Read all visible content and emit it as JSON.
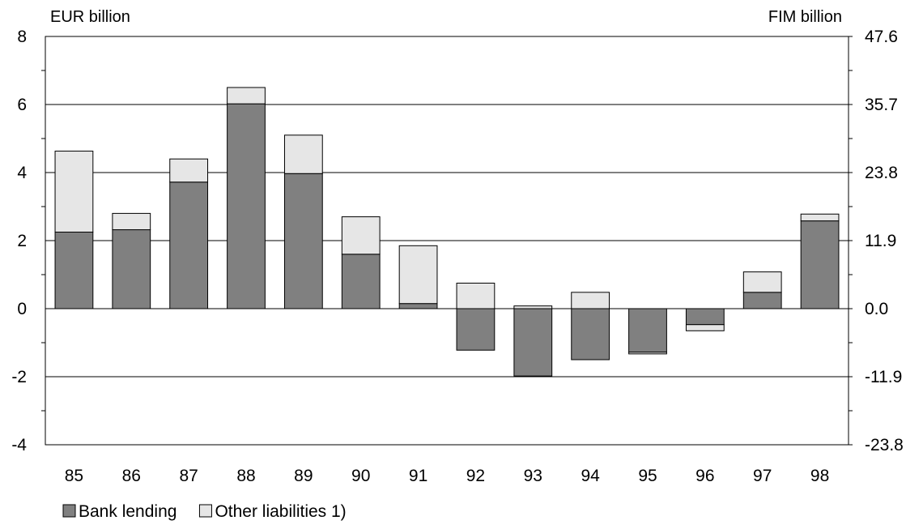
{
  "chart_data": {
    "type": "bar",
    "stacked": true,
    "title": "",
    "y_left_unit": "EUR billion",
    "y_right_unit": "FIM billion",
    "categories": [
      "85",
      "86",
      "87",
      "88",
      "89",
      "90",
      "91",
      "92",
      "93",
      "94",
      "95",
      "96",
      "97",
      "98"
    ],
    "series": [
      {
        "name": "Bank lending",
        "color": "#808080",
        "values": [
          2.25,
          2.32,
          3.72,
          6.02,
          3.97,
          1.6,
          0.15,
          -1.22,
          -1.98,
          -1.5,
          -1.28,
          -0.47,
          0.48,
          2.58
        ]
      },
      {
        "name": "Other liabilities 1)",
        "color": "#e6e6e6",
        "values": [
          2.38,
          0.48,
          0.68,
          0.48,
          1.13,
          1.1,
          1.7,
          0.75,
          0.08,
          0.48,
          -0.05,
          -0.18,
          0.6,
          0.2
        ]
      }
    ],
    "ylim": [
      -4,
      8
    ],
    "y_ticks": [
      -4,
      -2,
      0,
      2,
      4,
      6,
      8
    ],
    "y_right_ticks": [
      "47.6",
      "35.7",
      "23.8",
      "11.9",
      "0.0",
      "-11.9",
      "-23.8"
    ],
    "gridlines": true,
    "legend_position": "bottom-left"
  }
}
